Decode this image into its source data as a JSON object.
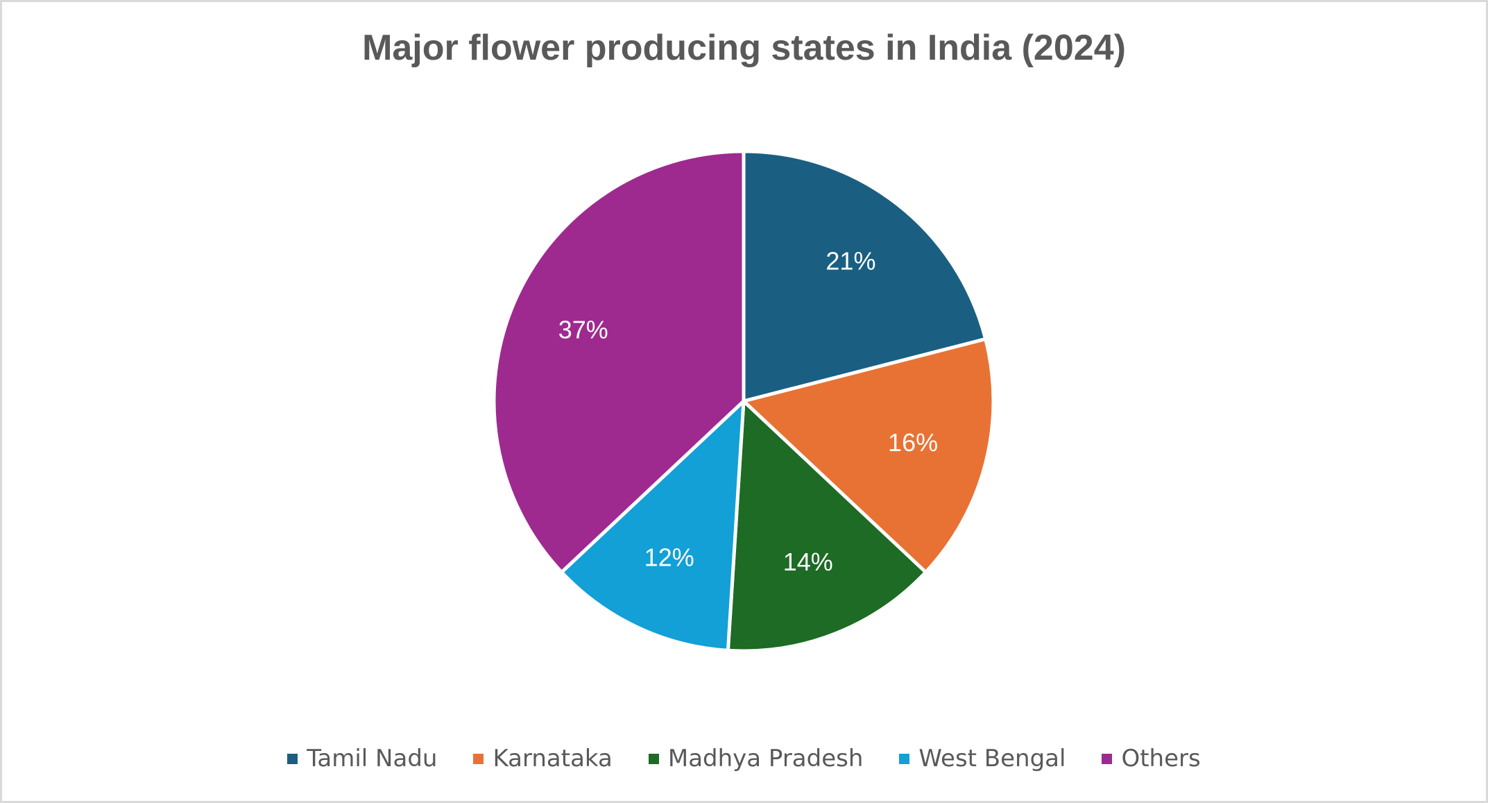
{
  "chart": {
    "title": "Major flower producing states in India (2024)"
  },
  "chart_data": {
    "type": "pie",
    "title": "Major flower producing states in India (2024)",
    "categories": [
      "Tamil Nadu",
      "Karnataka",
      "Madhya Pradesh",
      "West Bengal",
      "Others"
    ],
    "values": [
      21,
      16,
      14,
      12,
      37
    ],
    "labels": [
      "21%",
      "16%",
      "14%",
      "12%",
      "37%"
    ],
    "colors": [
      "#1a5f82",
      "#e87234",
      "#1d6b25",
      "#12a0d7",
      "#9e2a8f"
    ],
    "legend_position": "bottom",
    "start_angle_deg": 0,
    "direction": "clockwise"
  },
  "legend": {
    "items": [
      {
        "label": "Tamil Nadu",
        "color": "#1a5f82"
      },
      {
        "label": "Karnataka",
        "color": "#e87234"
      },
      {
        "label": "Madhya Pradesh",
        "color": "#1d6b25"
      },
      {
        "label": "West Bengal",
        "color": "#12a0d7"
      },
      {
        "label": "Others",
        "color": "#9e2a8f"
      }
    ]
  }
}
